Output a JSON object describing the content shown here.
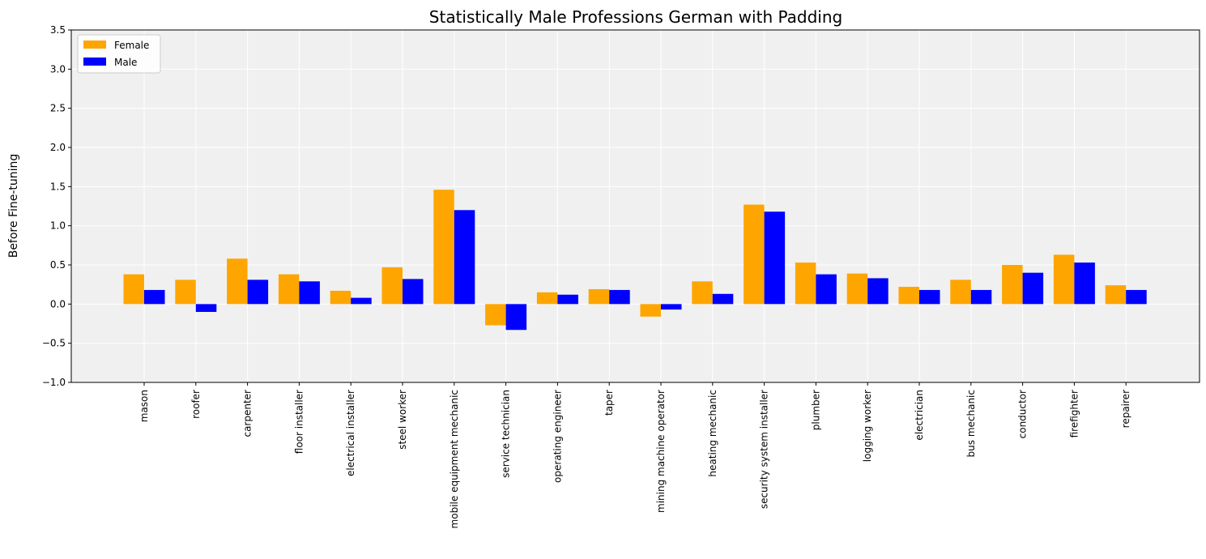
{
  "chart_data": {
    "type": "bar",
    "title": "Statistically Male Professions German with Padding",
    "xlabel": "",
    "ylabel": "Before Fine-tuning",
    "ylim": [
      -1.0,
      3.5
    ],
    "yticks": [
      "−1.0",
      "−0.5",
      "0.0",
      "0.5",
      "1.0",
      "1.5",
      "2.0",
      "2.5",
      "3.0",
      "3.5"
    ],
    "ytick_values": [
      -1.0,
      -0.5,
      0.0,
      0.5,
      1.0,
      1.5,
      2.0,
      2.5,
      3.0,
      3.5
    ],
    "grid": true,
    "legend_position": "top-left",
    "categories": [
      "mason",
      "roofer",
      "carpenter",
      "floor installer",
      "electrical installer",
      "steel worker",
      "mobile equipment mechanic",
      "service technician",
      "operating engineer",
      "taper",
      "mining machine operator",
      "heating mechanic",
      "security system installer",
      "plumber",
      "logging worker",
      "electrician",
      "bus mechanic",
      "conductor",
      "firefighter",
      "repairer"
    ],
    "series": [
      {
        "name": "Female",
        "color": "#ffa500",
        "values": [
          0.38,
          0.31,
          0.58,
          0.38,
          0.17,
          0.47,
          1.46,
          -0.27,
          0.15,
          0.19,
          -0.16,
          0.29,
          1.27,
          0.53,
          0.39,
          0.22,
          0.31,
          0.5,
          0.63,
          0.24
        ]
      },
      {
        "name": "Male",
        "color": "#0000ff",
        "values": [
          0.18,
          -0.1,
          0.31,
          0.29,
          0.08,
          0.32,
          1.2,
          -0.33,
          0.12,
          0.18,
          -0.07,
          0.13,
          1.18,
          0.38,
          0.33,
          0.18,
          0.18,
          0.4,
          0.53,
          0.18
        ]
      }
    ]
  }
}
